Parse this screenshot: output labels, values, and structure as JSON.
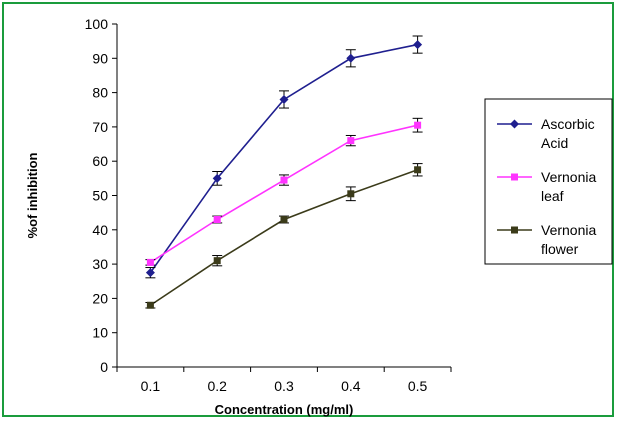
{
  "chart_data": {
    "type": "line",
    "title": "",
    "xlabel": "Concentration (mg/ml)",
    "ylabel": "%of inhibition",
    "x": [
      "0.1",
      "0.2",
      "0.3",
      "0.4",
      "0.5"
    ],
    "ylim": [
      0,
      100
    ],
    "yticks": [
      "0",
      "10",
      "20",
      "30",
      "40",
      "50",
      "60",
      "70",
      "80",
      "90",
      "100"
    ],
    "grid": false,
    "legend_position": "right",
    "series": [
      {
        "name": "Ascorbic Acid",
        "legend_lines": [
          "Ascorbic",
          "Acid"
        ],
        "color": "#1f1f8f",
        "marker": "diamond",
        "values": [
          27.5,
          55,
          78,
          90,
          94
        ],
        "errors": [
          1.5,
          2,
          2.5,
          2.5,
          2.5
        ]
      },
      {
        "name": "Vernonia leaf",
        "legend_lines": [
          "Vernonia",
          "leaf"
        ],
        "color": "#ff33ff",
        "marker": "square",
        "values": [
          30.5,
          43,
          54.5,
          66,
          70.5
        ],
        "errors": [
          0.8,
          1,
          1.5,
          1.5,
          2
        ]
      },
      {
        "name": "Vernonia flower",
        "legend_lines": [
          "Vernonia",
          "flower"
        ],
        "color": "#3b3b1a",
        "marker": "square",
        "values": [
          18,
          31,
          43,
          50.5,
          57.5
        ],
        "errors": [
          0.8,
          1.5,
          1,
          2,
          1.8
        ]
      }
    ]
  }
}
